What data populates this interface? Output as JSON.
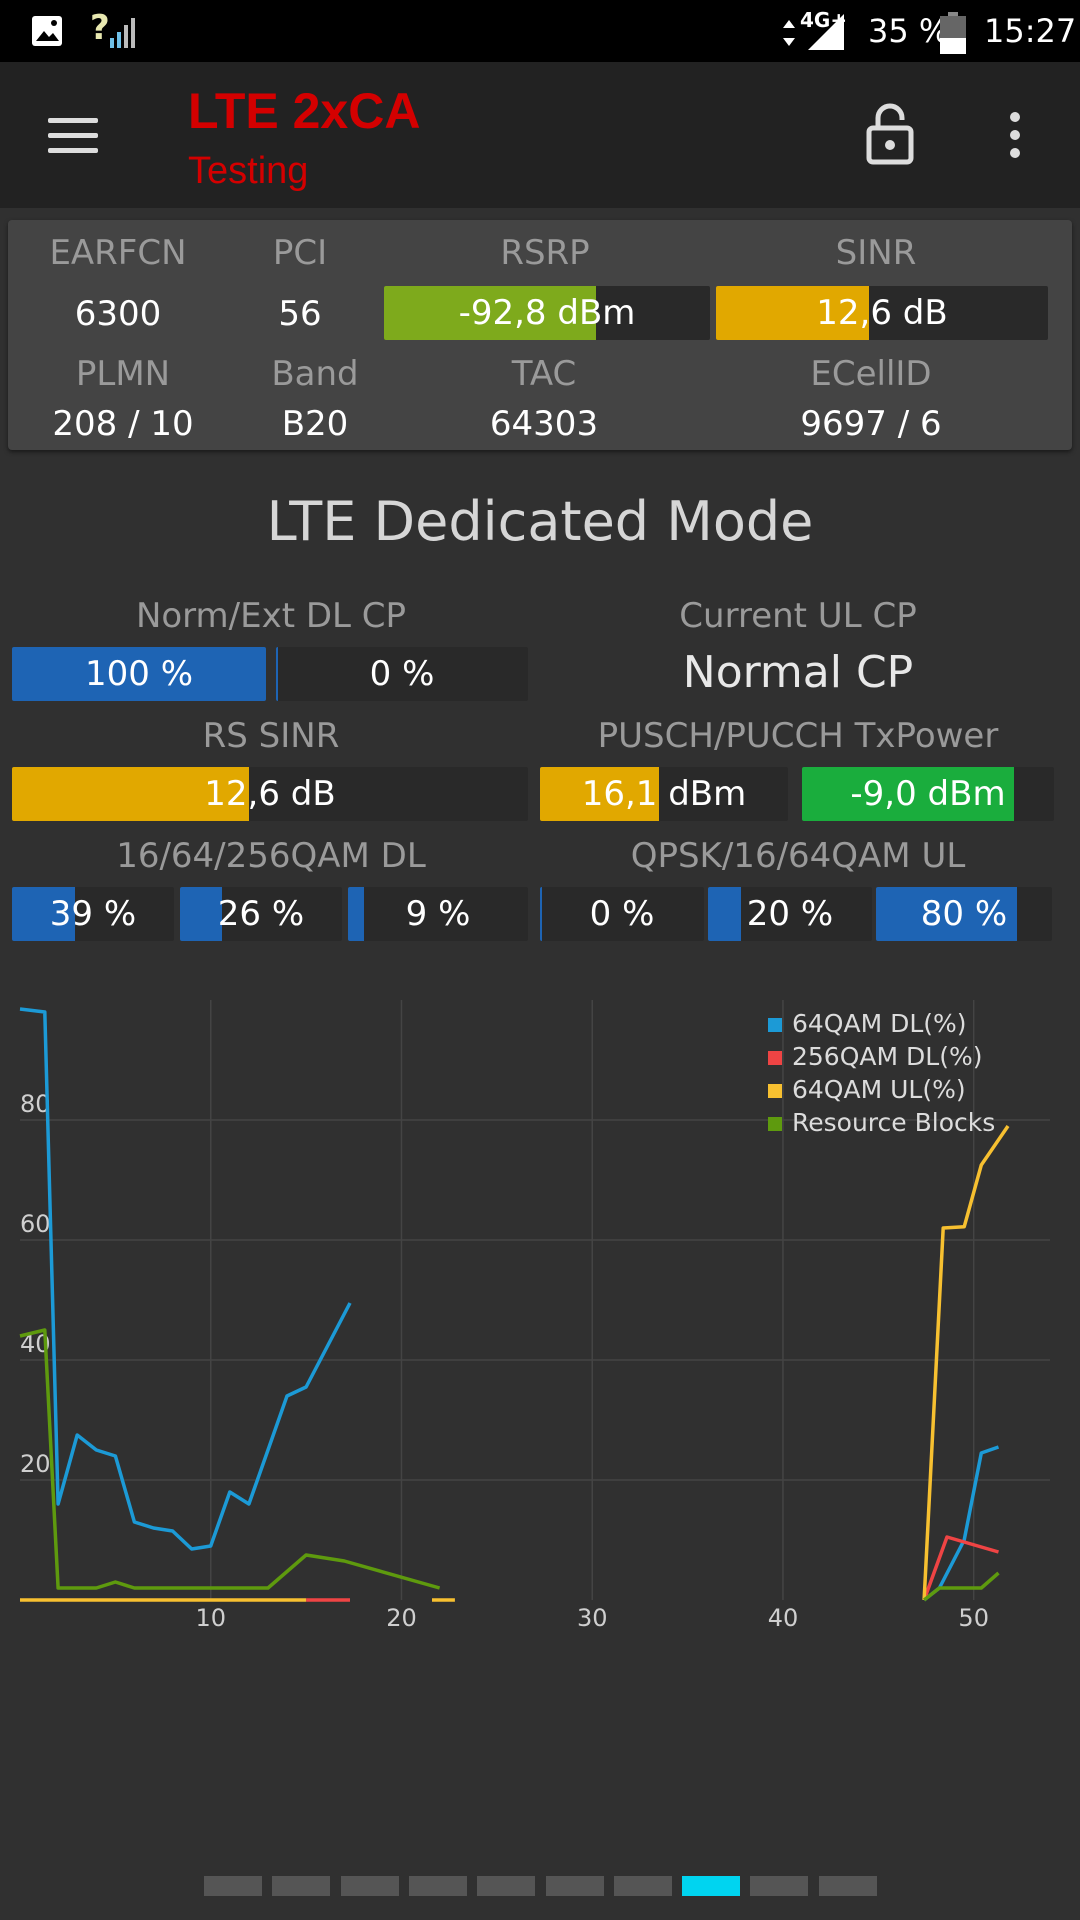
{
  "status_bar": {
    "network": "4G+",
    "battery": "35 %",
    "time": "15:27",
    "icons": [
      "image-icon",
      "signal-unknown-icon",
      "data-arrows-icon",
      "signal-icon",
      "battery-icon"
    ]
  },
  "app_bar": {
    "title": "LTE 2xCA",
    "subtitle": "Testing",
    "icons": [
      "menu-icon",
      "lock-icon",
      "more-vert-icon"
    ]
  },
  "info": {
    "earfcn_label": "EARFCN",
    "earfcn": "6300",
    "pci_label": "PCI",
    "pci": "56",
    "rsrp_label": "RSRP",
    "rsrp": "-92,8 dBm",
    "rsrp_level": 0.65,
    "sinr_label": "SINR",
    "sinr": "12,6 dB",
    "sinr_level": 0.46,
    "plmn_label": "PLMN",
    "plmn": "208 / 10",
    "band_label": "Band",
    "band": "B20",
    "tac_label": "TAC",
    "tac": "64303",
    "ecellid_label": "ECellID",
    "ecellid": "9697 / 6"
  },
  "section_title": "LTE Dedicated Mode",
  "dl_cp": {
    "label": "Norm/Ext DL CP",
    "normal": "100 %",
    "normal_level": 1.0,
    "extended": "0 %",
    "extended_level": 0.0
  },
  "ul_cp": {
    "label": "Current UL CP",
    "value": "Normal CP"
  },
  "rs_sinr": {
    "label": "RS SINR",
    "value": "12,6 dB",
    "level": 0.46
  },
  "txpower": {
    "label": "PUSCH/PUCCH TxPower",
    "pusch": "16,1 dBm",
    "pusch_level": 0.48,
    "pucch": "-9,0 dBm",
    "pucch_level": 0.84
  },
  "qam_dl": {
    "label": "16/64/256QAM DL",
    "values": [
      "39 %",
      "26 %",
      "9 %"
    ],
    "levels": [
      0.39,
      0.26,
      0.09
    ]
  },
  "qam_ul": {
    "label": "QPSK/16/64QAM UL",
    "values": [
      "0 %",
      "20 %",
      "80 %"
    ],
    "levels": [
      0.0,
      0.2,
      0.8
    ]
  },
  "colors": {
    "green": "#7eaa1c",
    "amber": "#e1a800",
    "blue": "#1e64b4",
    "bright_green": "#1aad3d",
    "title_red": "#d40000",
    "pager_active": "#00d4f0"
  },
  "chart_data": {
    "type": "line",
    "xlim": [
      0,
      54
    ],
    "ylim": [
      0,
      100
    ],
    "x_ticks": [
      10,
      20,
      30,
      40,
      50
    ],
    "y_ticks": [
      20,
      40,
      60,
      80
    ],
    "grid": true,
    "legend_position": "top-right",
    "series": [
      {
        "name": "64QAM DL(%)",
        "color": "#1c9ad6",
        "segments": [
          [
            [
              0,
              98.5
            ],
            [
              1.3,
              98
            ],
            [
              2,
              16
            ],
            [
              3,
              27.5
            ],
            [
              4,
              25
            ],
            [
              5,
              24
            ],
            [
              6,
              13
            ],
            [
              7,
              12
            ],
            [
              8,
              11.5
            ],
            [
              9,
              8.5
            ],
            [
              10,
              9
            ],
            [
              11,
              18
            ],
            [
              12,
              16
            ],
            [
              13,
              25
            ],
            [
              14,
              34
            ],
            [
              15,
              35.5
            ],
            [
              17.3,
              49.5
            ]
          ],
          [
            [
              47.4,
              0
            ],
            [
              48.2,
              2
            ],
            [
              49.5,
              10
            ],
            [
              50.4,
              24.5
            ],
            [
              51.3,
              25.5
            ]
          ]
        ]
      },
      {
        "name": "256QAM DL(%)",
        "color": "#ef4444",
        "segments": [
          [
            [
              15,
              0
            ],
            [
              17.3,
              0
            ]
          ],
          [
            [
              47.4,
              0
            ],
            [
              48.6,
              10.5
            ],
            [
              51.3,
              8
            ]
          ]
        ]
      },
      {
        "name": "64QAM UL(%)",
        "color": "#f7c030",
        "segments": [
          [
            [
              0,
              0
            ],
            [
              15,
              0
            ]
          ],
          [
            [
              21.6,
              0
            ],
            [
              22.8,
              0
            ]
          ],
          [
            [
              47.4,
              0
            ],
            [
              48.4,
              62
            ],
            [
              49.5,
              62.2
            ],
            [
              50.4,
              72.5
            ],
            [
              51.8,
              79
            ]
          ]
        ]
      },
      {
        "name": "Resource Blocks",
        "color": "#5e9a0e",
        "segments": [
          [
            [
              0,
              44
            ],
            [
              1.3,
              45
            ],
            [
              2,
              2
            ],
            [
              4,
              2
            ],
            [
              5,
              3
            ],
            [
              6,
              2
            ],
            [
              13,
              2
            ],
            [
              15,
              7.5
            ],
            [
              17,
              6.5
            ],
            [
              22,
              2
            ]
          ],
          [
            [
              47.4,
              0
            ],
            [
              48.2,
              2
            ],
            [
              49.5,
              2
            ],
            [
              50.4,
              2
            ],
            [
              51.3,
              4.5
            ]
          ]
        ]
      }
    ]
  },
  "pager": {
    "count": 10,
    "active": 7
  }
}
